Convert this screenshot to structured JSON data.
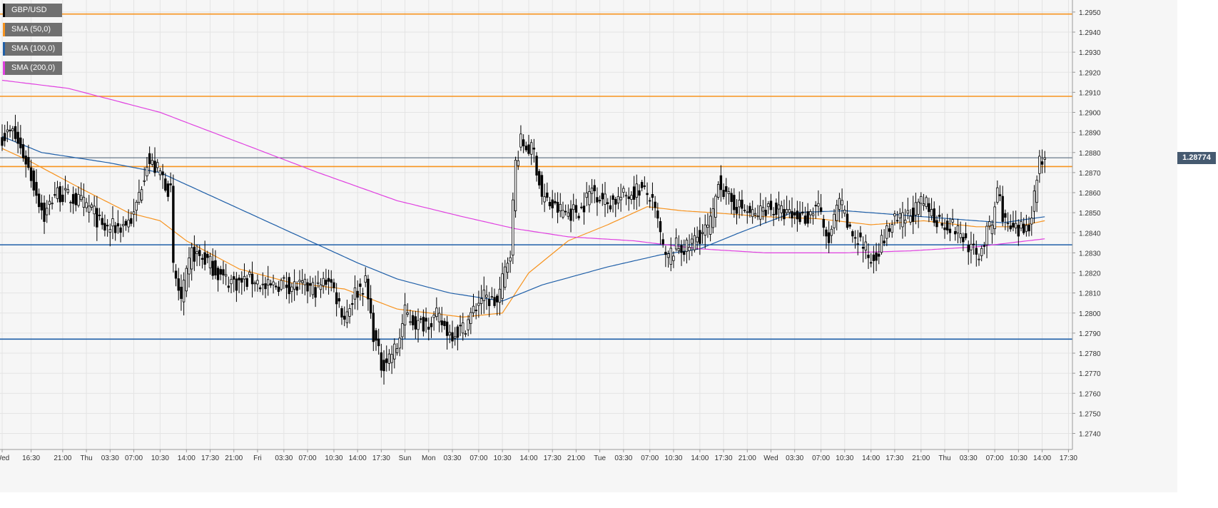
{
  "chart_data": {
    "type": "candlestick",
    "symbol": "GBP/USD",
    "legend": [
      {
        "label": "GBP/USD",
        "color": "#000000"
      },
      {
        "label": "SMA (50,0)",
        "color": "#f7931e"
      },
      {
        "label": "SMA (100,0)",
        "color": "#1f5fa8"
      },
      {
        "label": "SMA (200,0)",
        "color": "#e040e0"
      }
    ],
    "ylim": [
      1.2732,
      1.2956
    ],
    "y_ticks": [
      "1.2740",
      "1.2750",
      "1.2760",
      "1.2770",
      "1.2780",
      "1.2790",
      "1.2800",
      "1.2810",
      "1.2820",
      "1.2830",
      "1.2840",
      "1.2850",
      "1.2860",
      "1.2870",
      "1.2880",
      "1.2890",
      "1.2900",
      "1.2910",
      "1.2920",
      "1.2930",
      "1.2940",
      "1.2950"
    ],
    "x_ticks": [
      {
        "label": "Wed",
        "index": 0
      },
      {
        "label": "16:30",
        "index": 11
      },
      {
        "label": "21:00",
        "index": 23
      },
      {
        "label": "Thu",
        "index": 32
      },
      {
        "label": "03:30",
        "index": 41
      },
      {
        "label": "07:00",
        "index": 50
      },
      {
        "label": "10:30",
        "index": 60
      },
      {
        "label": "14:00",
        "index": 70
      },
      {
        "label": "17:30",
        "index": 79
      },
      {
        "label": "21:00",
        "index": 88
      },
      {
        "label": "Fri",
        "index": 97
      },
      {
        "label": "03:30",
        "index": 107
      },
      {
        "label": "07:00",
        "index": 116
      },
      {
        "label": "10:30",
        "index": 126
      },
      {
        "label": "14:00",
        "index": 135
      },
      {
        "label": "17:30",
        "index": 144
      },
      {
        "label": "Sun",
        "index": 153
      },
      {
        "label": "Mon",
        "index": 162
      },
      {
        "label": "03:30",
        "index": 171
      },
      {
        "label": "07:00",
        "index": 181
      },
      {
        "label": "10:30",
        "index": 190
      },
      {
        "label": "14:00",
        "index": 200
      },
      {
        "label": "17:30",
        "index": 209
      },
      {
        "label": "21:00",
        "index": 218
      },
      {
        "label": "Tue",
        "index": 227
      },
      {
        "label": "03:30",
        "index": 236
      },
      {
        "label": "07:00",
        "index": 246
      },
      {
        "label": "10:30",
        "index": 255
      },
      {
        "label": "14:00",
        "index": 265
      },
      {
        "label": "17:30",
        "index": 274
      },
      {
        "label": "21:00",
        "index": 283
      },
      {
        "label": "Wed",
        "index": 292
      },
      {
        "label": "03:30",
        "index": 301
      },
      {
        "label": "07:00",
        "index": 311
      },
      {
        "label": "10:30",
        "index": 320
      },
      {
        "label": "14:00",
        "index": 330
      },
      {
        "label": "17:30",
        "index": 339
      },
      {
        "label": "21:00",
        "index": 349
      },
      {
        "label": "Thu",
        "index": 358
      },
      {
        "label": "03:30",
        "index": 367
      },
      {
        "label": "07:00",
        "index": 377
      },
      {
        "label": "10:30",
        "index": 386
      },
      {
        "label": "14:00",
        "index": 395
      },
      {
        "label": "17:30",
        "index": 405
      }
    ],
    "horizontal_levels": [
      {
        "value": 1.2949,
        "color": "#f7931e"
      },
      {
        "value": 1.2908,
        "color": "#f7931e"
      },
      {
        "value": 1.2873,
        "color": "#f7931e"
      },
      {
        "value": 1.2834,
        "color": "#1f5fa8"
      },
      {
        "value": 1.2787,
        "color": "#1f5fa8"
      }
    ],
    "last_price": {
      "value": 1.28774,
      "label": "1.28774"
    },
    "grid": true,
    "keyframes": [
      [
        0,
        1.2888
      ],
      [
        4,
        1.289
      ],
      [
        9,
        1.2876
      ],
      [
        16,
        1.2848
      ],
      [
        20,
        1.286
      ],
      [
        27,
        1.2857
      ],
      [
        34,
        1.2852
      ],
      [
        38,
        1.2842
      ],
      [
        45,
        1.2843
      ],
      [
        50,
        1.2848
      ],
      [
        55,
        1.2876
      ],
      [
        60,
        1.287
      ],
      [
        64,
        1.286
      ],
      [
        65,
        1.2822
      ],
      [
        68,
        1.2806
      ],
      [
        72,
        1.283
      ],
      [
        78,
        1.2826
      ],
      [
        84,
        1.2817
      ],
      [
        90,
        1.2815
      ],
      [
        96,
        1.2817
      ],
      [
        100,
        1.2812
      ],
      [
        106,
        1.2815
      ],
      [
        112,
        1.2813
      ],
      [
        120,
        1.2812
      ],
      [
        124,
        1.2818
      ],
      [
        127,
        1.2808
      ],
      [
        130,
        1.2798
      ],
      [
        134,
        1.281
      ],
      [
        138,
        1.2815
      ],
      [
        141,
        1.279
      ],
      [
        144,
        1.2774
      ],
      [
        150,
        1.2783
      ],
      [
        153,
        1.28
      ],
      [
        158,
        1.2794
      ],
      [
        165,
        1.2798
      ],
      [
        170,
        1.279
      ],
      [
        175,
        1.2792
      ],
      [
        182,
        1.2808
      ],
      [
        188,
        1.2805
      ],
      [
        193,
        1.2832
      ],
      [
        195,
        1.2875
      ],
      [
        197,
        1.2885
      ],
      [
        202,
        1.288
      ],
      [
        205,
        1.2858
      ],
      [
        210,
        1.2852
      ],
      [
        215,
        1.285
      ],
      [
        220,
        1.2852
      ],
      [
        224,
        1.2862
      ],
      [
        230,
        1.2855
      ],
      [
        236,
        1.2858
      ],
      [
        242,
        1.2862
      ],
      [
        246,
        1.2858
      ],
      [
        249,
        1.2845
      ],
      [
        252,
        1.2826
      ],
      [
        256,
        1.2833
      ],
      [
        260,
        1.2832
      ],
      [
        264,
        1.2838
      ],
      [
        268,
        1.2842
      ],
      [
        270,
        1.2848
      ],
      [
        272,
        1.2868
      ],
      [
        275,
        1.2857
      ],
      [
        280,
        1.2853
      ],
      [
        286,
        1.2848
      ],
      [
        290,
        1.2853
      ],
      [
        296,
        1.285
      ],
      [
        300,
        1.2848
      ],
      [
        306,
        1.2848
      ],
      [
        310,
        1.2855
      ],
      [
        312,
        1.284
      ],
      [
        314,
        1.2836
      ],
      [
        318,
        1.2856
      ],
      [
        322,
        1.284
      ],
      [
        326,
        1.2836
      ],
      [
        330,
        1.2826
      ],
      [
        334,
        1.2835
      ],
      [
        338,
        1.2845
      ],
      [
        342,
        1.2846
      ],
      [
        346,
        1.285
      ],
      [
        350,
        1.2855
      ],
      [
        354,
        1.2848
      ],
      [
        358,
        1.2845
      ],
      [
        362,
        1.2842
      ],
      [
        366,
        1.2836
      ],
      [
        370,
        1.2828
      ],
      [
        372,
        1.2832
      ],
      [
        374,
        1.284
      ],
      [
        376,
        1.2844
      ],
      [
        378,
        1.2862
      ],
      [
        380,
        1.285
      ],
      [
        382,
        1.2842
      ],
      [
        386,
        1.284
      ],
      [
        390,
        1.2845
      ],
      [
        392,
        1.2858
      ],
      [
        394,
        1.2877
      ],
      [
        396,
        1.2877
      ]
    ],
    "sma_keyframes": {
      "sma50": [
        [
          0,
          1.2882
        ],
        [
          10,
          1.2876
        ],
        [
          30,
          1.2862
        ],
        [
          48,
          1.285
        ],
        [
          60,
          1.2846
        ],
        [
          70,
          1.2836
        ],
        [
          90,
          1.2822
        ],
        [
          110,
          1.2815
        ],
        [
          130,
          1.2812
        ],
        [
          150,
          1.2802
        ],
        [
          175,
          1.2798
        ],
        [
          190,
          1.28
        ],
        [
          200,
          1.282
        ],
        [
          215,
          1.2836
        ],
        [
          230,
          1.2844
        ],
        [
          245,
          1.2853
        ],
        [
          258,
          1.2851
        ],
        [
          270,
          1.285
        ],
        [
          290,
          1.2848
        ],
        [
          310,
          1.2847
        ],
        [
          330,
          1.2844
        ],
        [
          350,
          1.2846
        ],
        [
          370,
          1.2843
        ],
        [
          385,
          1.2843
        ],
        [
          396,
          1.2846
        ]
      ],
      "sma100": [
        [
          0,
          1.2888
        ],
        [
          15,
          1.288
        ],
        [
          40,
          1.2875
        ],
        [
          60,
          1.287
        ],
        [
          80,
          1.2858
        ],
        [
          110,
          1.284
        ],
        [
          135,
          1.2825
        ],
        [
          150,
          1.2817
        ],
        [
          170,
          1.281
        ],
        [
          190,
          1.2806
        ],
        [
          205,
          1.2814
        ],
        [
          230,
          1.2823
        ],
        [
          250,
          1.2829
        ],
        [
          265,
          1.2832
        ],
        [
          280,
          1.284
        ],
        [
          300,
          1.285
        ],
        [
          320,
          1.2851
        ],
        [
          340,
          1.2849
        ],
        [
          360,
          1.2847
        ],
        [
          380,
          1.2845
        ],
        [
          396,
          1.2848
        ]
      ],
      "sma200": [
        [
          0,
          1.2916
        ],
        [
          25,
          1.2912
        ],
        [
          60,
          1.29
        ],
        [
          90,
          1.2885
        ],
        [
          120,
          1.287
        ],
        [
          150,
          1.2856
        ],
        [
          175,
          1.2848
        ],
        [
          195,
          1.2842
        ],
        [
          215,
          1.2838
        ],
        [
          240,
          1.2836
        ],
        [
          265,
          1.2832
        ],
        [
          290,
          1.283
        ],
        [
          320,
          1.283
        ],
        [
          345,
          1.2831
        ],
        [
          370,
          1.2833
        ],
        [
          396,
          1.2837
        ]
      ]
    }
  }
}
